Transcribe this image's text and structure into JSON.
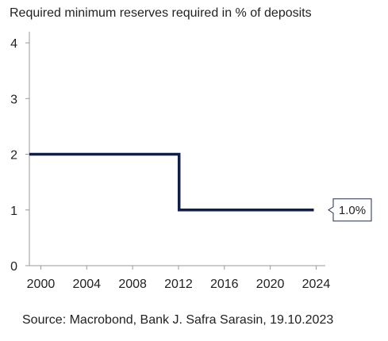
{
  "chart_data": {
    "type": "line",
    "title": "Required minimum reserves required in % of deposits",
    "source": "Source: Macrobond, Bank J. Safra Sarasin, 19.10.2023",
    "x_ticks": [
      "2000",
      "2004",
      "2008",
      "2012",
      "2016",
      "2020",
      "2024"
    ],
    "y_ticks": [
      "0",
      "1",
      "2",
      "3",
      "4"
    ],
    "xlim": [
      1999.0,
      2024.8
    ],
    "ylim": [
      0,
      4.2
    ],
    "grid": false,
    "series": [
      {
        "color": "#0d1f4a",
        "step": true,
        "points": [
          {
            "x": 1999.0,
            "y": 2.0
          },
          {
            "x": 2012.05,
            "y": 2.0
          },
          {
            "x": 2012.05,
            "y": 1.0
          },
          {
            "x": 2023.8,
            "y": 1.0
          }
        ],
        "end_label": "1.0%"
      }
    ]
  }
}
